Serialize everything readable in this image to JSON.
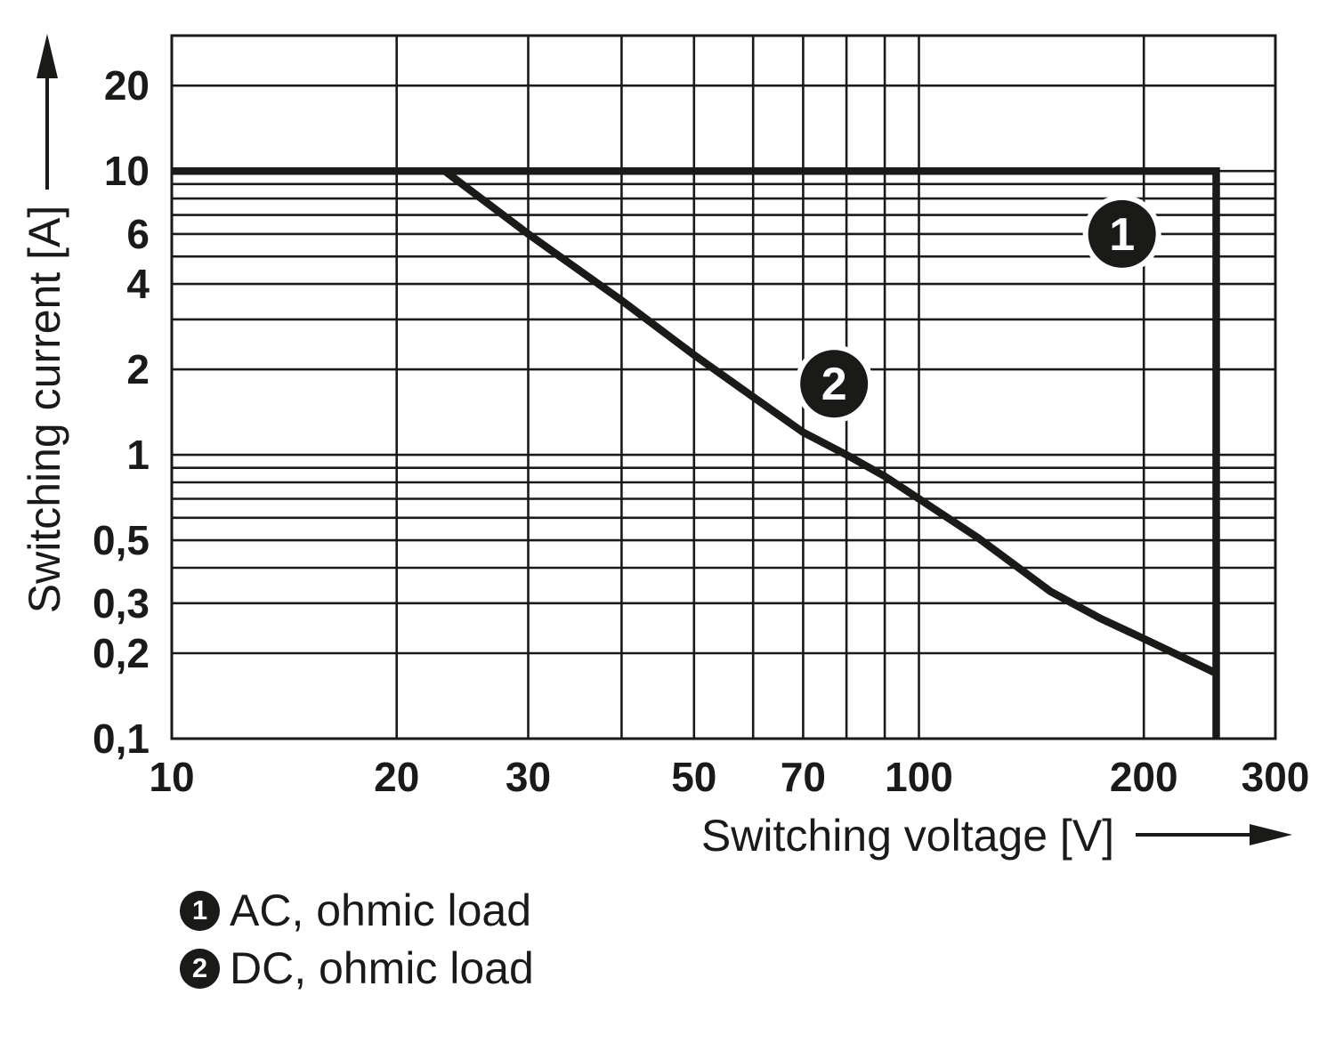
{
  "chart_data": {
    "type": "line",
    "title": "",
    "x_axis": {
      "label": "Switching voltage [V]",
      "scale": "log",
      "min": 10,
      "max": 300,
      "ticks": [
        {
          "value": 10,
          "label": "10"
        },
        {
          "value": 20,
          "label": "20"
        },
        {
          "value": 30,
          "label": "30"
        },
        {
          "value": 50,
          "label": "50"
        },
        {
          "value": 70,
          "label": "70"
        },
        {
          "value": 100,
          "label": "100"
        },
        {
          "value": 200,
          "label": "200"
        },
        {
          "value": 300,
          "label": "300"
        }
      ],
      "gridlines": [
        20,
        30,
        40,
        50,
        60,
        70,
        80,
        90,
        100,
        200
      ]
    },
    "y_axis": {
      "label": "Switching current [A]",
      "scale": "log",
      "min": 0.1,
      "max": 30,
      "ticks": [
        {
          "value": 20,
          "label": "20"
        },
        {
          "value": 10,
          "label": "10"
        },
        {
          "value": 6,
          "label": "6"
        },
        {
          "value": 4,
          "label": "4"
        },
        {
          "value": 2,
          "label": "2"
        },
        {
          "value": 1,
          "label": "1"
        },
        {
          "value": 0.5,
          "label": "0,5"
        },
        {
          "value": 0.3,
          "label": "0,3"
        },
        {
          "value": 0.2,
          "label": "0,2"
        },
        {
          "value": 0.1,
          "label": "0,1"
        }
      ],
      "gridlines": [
        0.2,
        0.3,
        0.4,
        0.5,
        0.6,
        0.7,
        0.8,
        0.9,
        1,
        2,
        3,
        4,
        5,
        6,
        7,
        8,
        9,
        10,
        20
      ]
    },
    "series": [
      {
        "id": 1,
        "name": "AC, ohmic load",
        "points": [
          [
            10,
            10
          ],
          [
            250,
            10
          ],
          [
            250,
            0.1
          ]
        ]
      },
      {
        "id": 2,
        "name": "DC, ohmic load",
        "points": [
          [
            23.2,
            10
          ],
          [
            30,
            6
          ],
          [
            40,
            3.5
          ],
          [
            50,
            2.25
          ],
          [
            60,
            1.6
          ],
          [
            70,
            1.2
          ],
          [
            80,
            1.0
          ],
          [
            90,
            0.84
          ],
          [
            100,
            0.7
          ],
          [
            120,
            0.51
          ],
          [
            150,
            0.33
          ],
          [
            175,
            0.265
          ],
          [
            200,
            0.225
          ],
          [
            250,
            0.17
          ]
        ]
      }
    ],
    "annotations": [
      {
        "label": "1",
        "x": 187,
        "y": 6
      },
      {
        "label": "2",
        "x": 77,
        "y": 1.78
      }
    ]
  },
  "legend": {
    "items": [
      {
        "num": "1",
        "label": "AC, ohmic load"
      },
      {
        "num": "2",
        "label": "DC, ohmic load"
      }
    ]
  },
  "colors": {
    "ink": "#1a1a18",
    "background": "#ffffff"
  }
}
